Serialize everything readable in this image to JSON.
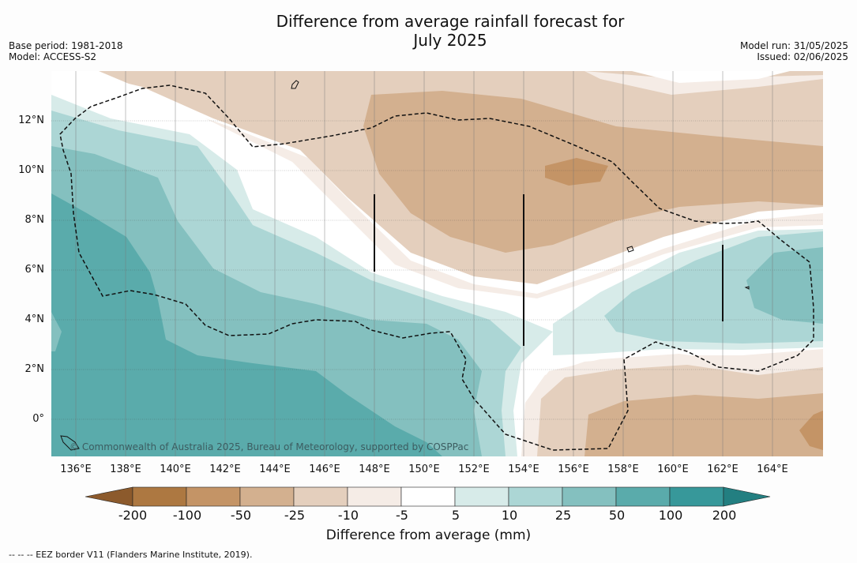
{
  "title_line1": "Difference from average rainfall forecast for",
  "title_line2": "July 2025",
  "base_period": "Base period: 1981-2018",
  "model": "Model: ACCESS-S2",
  "model_run": "Model run: 31/05/2025",
  "issued": "Issued: 02/06/2025",
  "lon_labels": [
    "136°E",
    "138°E",
    "140°E",
    "142°E",
    "144°E",
    "146°E",
    "148°E",
    "150°E",
    "152°E",
    "154°E",
    "156°E",
    "158°E",
    "160°E",
    "162°E",
    "164°E"
  ],
  "lat_labels": [
    "12°N",
    "10°N",
    "8°N",
    "6°N",
    "4°N",
    "2°N",
    "0°"
  ],
  "copyright": "© Commonwealth of Australia 2025, Bureau of Meteorology, supported by COSPPac",
  "colorbar": {
    "ticks": [
      "-200",
      "-100",
      "-50",
      "-25",
      "-10",
      "-5",
      "5",
      "10",
      "25",
      "50",
      "100",
      "200"
    ],
    "colors": [
      "#8c5a2c",
      "#ad7841",
      "#c49466",
      "#d3b08f",
      "#e4cfbd",
      "#f5ece6",
      "#ffffff",
      "#d7ebe9",
      "#acd6d5",
      "#84c0bf",
      "#5aabab",
      "#37989a",
      "#237f81"
    ],
    "label": "Difference from average (mm)"
  },
  "footer_note": "--  --  -- EEZ border V11 (Flanders Marine Institute, 2019)."
}
